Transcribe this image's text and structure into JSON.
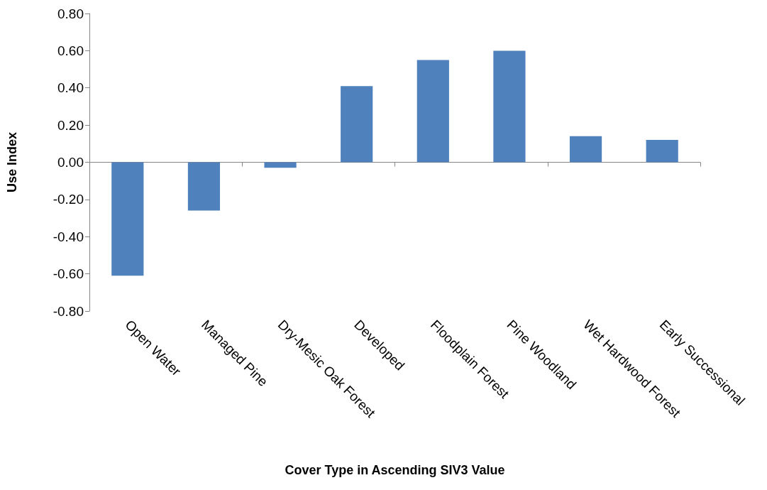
{
  "chart_data": {
    "type": "bar",
    "xlabel": "Cover Type in Ascending SIV3 Value",
    "ylabel": "Use Index",
    "categories": [
      "Open Water",
      "Managed Pine",
      "Dry-Mesic Oak Forest",
      "Developed",
      "Floodplain Forest",
      "Pine Woodland",
      "Wet Hardwood Forest",
      "Early Successional"
    ],
    "values": [
      -0.61,
      -0.26,
      -0.03,
      0.41,
      0.55,
      0.6,
      0.14,
      0.12
    ],
    "color": "#4f81bd",
    "ylim": [
      -0.8,
      0.8
    ],
    "yticks": [
      {
        "value": -0.8,
        "label": "-0.80"
      },
      {
        "value": -0.6,
        "label": "-0.60"
      },
      {
        "value": -0.4,
        "label": "-0.40"
      },
      {
        "value": -0.2,
        "label": "-0.20"
      },
      {
        "value": 0,
        "label": "0.00"
      },
      {
        "value": 0.2,
        "label": "0.20"
      },
      {
        "value": 0.4,
        "label": "0.40"
      },
      {
        "value": 0.6,
        "label": "0.60"
      },
      {
        "value": 0.8,
        "label": "0.80"
      }
    ]
  }
}
